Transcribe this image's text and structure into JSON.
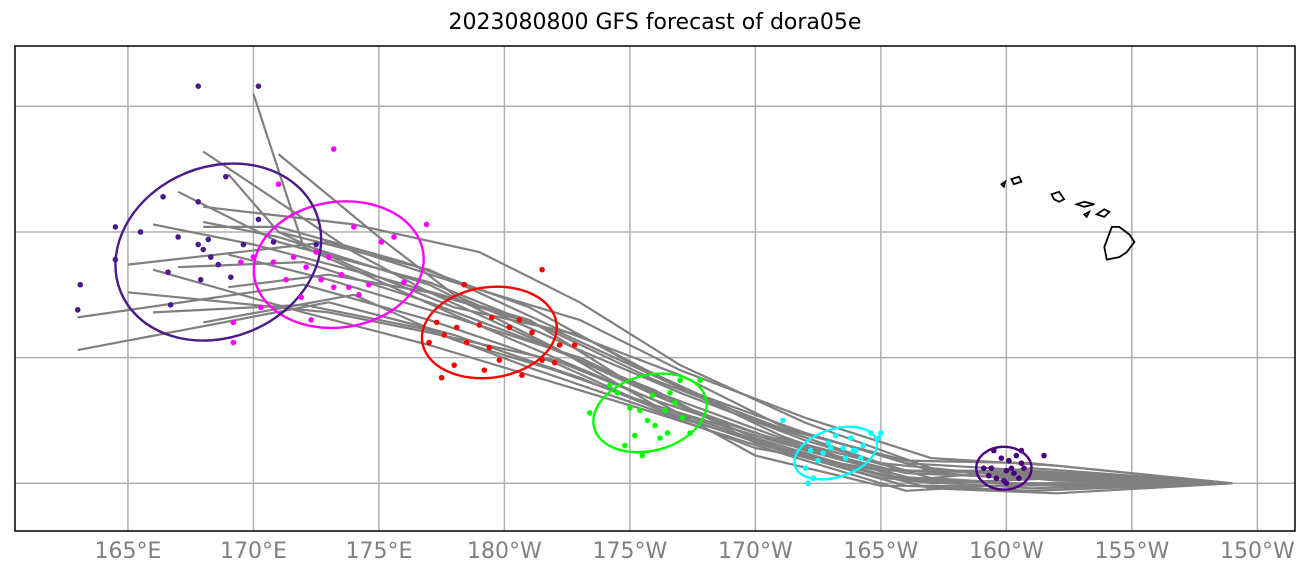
{
  "title": "2023080800 GFS forecast of dora05e",
  "lon_ticks": [
    {
      "lon": 165,
      "label": "165°E"
    },
    {
      "lon": 170,
      "label": "170°E"
    },
    {
      "lon": 175,
      "label": "175°E"
    },
    {
      "lon": 180,
      "label": "180°W"
    },
    {
      "lon": 185,
      "label": "175°W"
    },
    {
      "lon": 190,
      "label": "170°W"
    },
    {
      "lon": 195,
      "label": "165°W"
    },
    {
      "lon": 200,
      "label": "160°W"
    },
    {
      "lon": 205,
      "label": "155°W"
    },
    {
      "lon": 210,
      "label": "150°W"
    }
  ],
  "lat_gridlines": [
    10,
    15,
    20,
    25
  ],
  "extent": {
    "lon_min": 160.5,
    "lon_max": 211.5,
    "lat_min": 8.1,
    "lat_max": 27.4
  },
  "colors": {
    "track": "#808080",
    "grid": "#b0b0b0",
    "coast": "#000000",
    "day1": "#4b0082",
    "day2": "#00ffff",
    "day3": "#00ff00",
    "day4": "#ff0000",
    "day5": "#ff00ff",
    "day6": "#4b1a8a"
  },
  "start": {
    "lon": 209.0,
    "lat": 10.0
  },
  "tracks": [
    [
      [
        209,
        10.0
      ],
      [
        200,
        10.0
      ],
      [
        195,
        10.3
      ],
      [
        190,
        11.8
      ],
      [
        186,
        13.5
      ],
      [
        181,
        15.8
      ],
      [
        177,
        17.6
      ],
      [
        174,
        19.2
      ],
      [
        168,
        23.2
      ]
    ],
    [
      [
        209,
        10.0
      ],
      [
        200,
        10.2
      ],
      [
        195,
        10.6
      ],
      [
        190,
        12.0
      ],
      [
        186,
        13.3
      ],
      [
        182,
        15.0
      ],
      [
        178,
        16.7
      ],
      [
        172,
        19.4
      ],
      [
        170,
        25.5
      ]
    ],
    [
      [
        209,
        10.0
      ],
      [
        201,
        10.4
      ],
      [
        196,
        10.5
      ],
      [
        191,
        11.8
      ],
      [
        185,
        14.0
      ],
      [
        181,
        16.5
      ],
      [
        175,
        18.2
      ],
      [
        170,
        19.5
      ],
      [
        166,
        20.3
      ]
    ],
    [
      [
        209,
        10.0
      ],
      [
        201,
        9.7
      ],
      [
        196,
        9.9
      ],
      [
        191,
        11.3
      ],
      [
        186,
        13.0
      ],
      [
        182,
        14.8
      ],
      [
        177,
        16.5
      ],
      [
        172,
        17.9
      ],
      [
        163,
        16.6
      ]
    ],
    [
      [
        209,
        10.0
      ],
      [
        202,
        9.6
      ],
      [
        197,
        9.8
      ],
      [
        192,
        11.1
      ],
      [
        187,
        12.6
      ],
      [
        183,
        14.2
      ],
      [
        178,
        15.9
      ],
      [
        173,
        17.2
      ],
      [
        163,
        15.3
      ]
    ],
    [
      [
        209,
        10.0
      ],
      [
        202,
        10.7
      ],
      [
        197,
        11.0
      ],
      [
        192,
        12.6
      ],
      [
        187,
        14.5
      ],
      [
        183,
        16.5
      ],
      [
        178,
        18.0
      ],
      [
        173,
        19.6
      ],
      [
        165,
        18.7
      ]
    ],
    [
      [
        209,
        10.0
      ],
      [
        201,
        10.2
      ],
      [
        196,
        10.4
      ],
      [
        191,
        11.6
      ],
      [
        186,
        13.1
      ],
      [
        182,
        15.4
      ],
      [
        177,
        17.9
      ],
      [
        171,
        19.8
      ],
      [
        168,
        20.4
      ]
    ],
    [
      [
        209,
        10.0
      ],
      [
        200,
        10.5
      ],
      [
        195,
        10.5
      ],
      [
        190,
        11.4
      ],
      [
        186,
        12.9
      ],
      [
        181,
        14.6
      ],
      [
        177,
        16.1
      ],
      [
        172,
        17.1
      ],
      [
        166,
        16.8
      ]
    ],
    [
      [
        209,
        10.0
      ],
      [
        202,
        9.9
      ],
      [
        197,
        10.2
      ],
      [
        192,
        11.7
      ],
      [
        187,
        13.6
      ],
      [
        183,
        15.3
      ],
      [
        178,
        17.5
      ],
      [
        175,
        19.8
      ],
      [
        171,
        23.1
      ]
    ],
    [
      [
        209,
        10.0
      ],
      [
        201,
        10.8
      ],
      [
        196,
        10.9
      ],
      [
        191,
        12.2
      ],
      [
        186,
        14.1
      ],
      [
        182,
        16.0
      ],
      [
        177,
        18.0
      ],
      [
        171,
        19.6
      ],
      [
        167,
        21.6
      ]
    ],
    [
      [
        209,
        10.0
      ],
      [
        202,
        10.2
      ],
      [
        197,
        10.0
      ],
      [
        192,
        11.3
      ],
      [
        187,
        13.1
      ],
      [
        183,
        15.0
      ],
      [
        178,
        16.6
      ],
      [
        173,
        18.1
      ],
      [
        169,
        19.1
      ]
    ],
    [
      [
        209,
        10.0
      ],
      [
        200,
        9.9
      ],
      [
        195,
        9.9
      ],
      [
        190,
        11.1
      ],
      [
        186,
        13.3
      ],
      [
        182,
        14.9
      ],
      [
        177,
        16.0
      ],
      [
        173,
        16.8
      ],
      [
        165,
        17.6
      ]
    ],
    [
      [
        209,
        10.0
      ],
      [
        201,
        10.5
      ],
      [
        196,
        10.8
      ],
      [
        191,
        12.3
      ],
      [
        187,
        14.3
      ],
      [
        182,
        16.2
      ],
      [
        177,
        18.5
      ],
      [
        171,
        20.0
      ],
      [
        169,
        22.3
      ]
    ],
    [
      [
        209,
        10.0
      ],
      [
        202,
        10.3
      ],
      [
        197,
        10.5
      ],
      [
        192,
        12.0
      ],
      [
        187,
        13.8
      ],
      [
        183,
        15.9
      ],
      [
        178,
        17.0
      ],
      [
        174,
        18.6
      ],
      [
        171,
        20.0
      ]
    ],
    [
      [
        209,
        10.0
      ],
      [
        200,
        10.0
      ],
      [
        195,
        10.2
      ],
      [
        190,
        11.6
      ],
      [
        186,
        13.7
      ],
      [
        181,
        15.7
      ],
      [
        177,
        17.2
      ],
      [
        172,
        18.8
      ],
      [
        167,
        18.6
      ]
    ],
    [
      [
        209,
        10.0
      ],
      [
        201,
        10.6
      ],
      [
        196,
        10.1
      ],
      [
        191,
        11.4
      ],
      [
        186,
        13.1
      ],
      [
        182,
        14.5
      ],
      [
        178,
        15.7
      ],
      [
        174,
        17.5
      ],
      [
        168,
        16.4
      ]
    ],
    [
      [
        209,
        10.0
      ],
      [
        201,
        9.8
      ],
      [
        196,
        10.1
      ],
      [
        191,
        11.9
      ],
      [
        187,
        13.8
      ],
      [
        182,
        16.1
      ],
      [
        177,
        17.6
      ],
      [
        173,
        18.3
      ],
      [
        169,
        17.8
      ]
    ],
    [
      [
        209,
        10.0
      ],
      [
        202,
        10.1
      ],
      [
        197,
        10.6
      ],
      [
        192,
        12.4
      ],
      [
        187,
        14.7
      ],
      [
        183,
        17.2
      ],
      [
        179,
        19.2
      ],
      [
        174,
        20.3
      ],
      [
        168,
        21.0
      ]
    ],
    [
      [
        209,
        10.0
      ],
      [
        200,
        10.3
      ],
      [
        195,
        10.8
      ],
      [
        190,
        12.5
      ],
      [
        185,
        14.8
      ],
      [
        181,
        17.0
      ],
      [
        176,
        18.8
      ],
      [
        171,
        20.2
      ],
      [
        168,
        20.2
      ]
    ],
    [
      [
        209,
        10.0
      ],
      [
        201,
        10.0
      ],
      [
        196,
        9.7
      ],
      [
        191,
        11.2
      ],
      [
        186,
        12.8
      ],
      [
        181,
        14.3
      ],
      [
        177,
        15.5
      ],
      [
        172,
        16.8
      ],
      [
        166,
        18.5
      ]
    ]
  ],
  "ellipses": [
    {
      "color": "#4b0082",
      "cx": 199.9,
      "cy": 10.6,
      "rx": 1.1,
      "ry": 0.85,
      "rot": 0
    },
    {
      "color": "#00ffff",
      "cx": 193.2,
      "cy": 11.2,
      "rx": 1.7,
      "ry": 0.95,
      "rot": -18
    },
    {
      "color": "#00ff00",
      "cx": 185.8,
      "cy": 12.8,
      "rx": 2.3,
      "ry": 1.5,
      "rot": -15
    },
    {
      "color": "#ff0000",
      "cx": 179.4,
      "cy": 16.0,
      "rx": 2.7,
      "ry": 1.8,
      "rot": -8
    },
    {
      "color": "#ff00ff",
      "cx": 173.4,
      "cy": 18.7,
      "rx": 3.4,
      "ry": 2.5,
      "rot": -8
    },
    {
      "color": "#4b1a8a",
      "cx": 168.6,
      "cy": 19.2,
      "rx": 4.2,
      "ry": 3.4,
      "rot": -22
    }
  ],
  "points": [
    {
      "color": "#4b0082",
      "pts": [
        [
          200,
          10.0
        ],
        [
          200.3,
          10.4
        ],
        [
          200.6,
          10.8
        ],
        [
          200.1,
          10.9
        ],
        [
          199.4,
          10.6
        ],
        [
          199.8,
          11.0
        ],
        [
          200.5,
          10.2
        ],
        [
          199.6,
          10.2
        ],
        [
          200.4,
          11.1
        ],
        [
          200.7,
          10.6
        ],
        [
          199.5,
          11.3
        ],
        [
          201.5,
          11.1
        ],
        [
          199.9,
          10.1
        ],
        [
          199.3,
          10.3
        ],
        [
          200.2,
          10.6
        ],
        [
          199.1,
          10.6
        ],
        [
          200.6,
          11.3
        ],
        [
          200.0,
          10.5
        ]
      ]
    },
    {
      "color": "#00ffff",
      "pts": [
        [
          192.0,
          10.6
        ],
        [
          192.2,
          11.3
        ],
        [
          192.5,
          10.9
        ],
        [
          192.9,
          11.6
        ],
        [
          193.2,
          11.9
        ],
        [
          193.5,
          11.4
        ],
        [
          193.8,
          11.8
        ],
        [
          194.0,
          11.3
        ],
        [
          194.3,
          11.5
        ],
        [
          194.6,
          12.0
        ],
        [
          194.9,
          11.8
        ],
        [
          192.7,
          11.2
        ],
        [
          193.0,
          11.4
        ],
        [
          193.6,
          11.0
        ],
        [
          192.3,
          10.2
        ],
        [
          192.1,
          10.0
        ],
        [
          193.9,
          11.3
        ],
        [
          195.0,
          12.0
        ],
        [
          191.1,
          12.5
        ],
        [
          194.2,
          11.0
        ]
      ]
    },
    {
      "color": "#00ff00",
      "pts": [
        [
          184.2,
          13.9
        ],
        [
          184.5,
          13.6
        ],
        [
          185.0,
          13.0
        ],
        [
          185.4,
          12.9
        ],
        [
          185.7,
          12.5
        ],
        [
          186.0,
          12.3
        ],
        [
          186.4,
          12.9
        ],
        [
          186.8,
          13.2
        ],
        [
          187.1,
          12.6
        ],
        [
          187.4,
          12.0
        ],
        [
          185.9,
          13.5
        ],
        [
          186.2,
          11.8
        ],
        [
          184.8,
          11.5
        ],
        [
          185.2,
          11.9
        ],
        [
          186.6,
          13.6
        ],
        [
          185.5,
          11.1
        ],
        [
          187.0,
          14.1
        ],
        [
          183.4,
          12.8
        ],
        [
          186.5,
          12.0
        ],
        [
          187.8,
          14.1
        ]
      ]
    },
    {
      "color": "#ff0000",
      "pts": [
        [
          177.0,
          15.6
        ],
        [
          177.6,
          15.9
        ],
        [
          178.1,
          16.2
        ],
        [
          178.5,
          15.6
        ],
        [
          179.0,
          16.3
        ],
        [
          179.4,
          15.4
        ],
        [
          179.8,
          14.9
        ],
        [
          180.2,
          16.2
        ],
        [
          180.6,
          16.5
        ],
        [
          181.1,
          16.0
        ],
        [
          181.5,
          14.9
        ],
        [
          182.0,
          14.8
        ],
        [
          179.2,
          14.5
        ],
        [
          178.0,
          14.7
        ],
        [
          177.5,
          14.2
        ],
        [
          180.7,
          14.3
        ],
        [
          182.2,
          15.5
        ],
        [
          179.5,
          16.6
        ],
        [
          181.5,
          18.5
        ],
        [
          182.8,
          15.5
        ],
        [
          178.4,
          17.9
        ],
        [
          177.3,
          16.4
        ]
      ]
    },
    {
      "color": "#ff00ff",
      "pts": [
        [
          169.5,
          18.8
        ],
        [
          170.0,
          19.0
        ],
        [
          170.8,
          18.8
        ],
        [
          171.3,
          18.1
        ],
        [
          171.6,
          19.0
        ],
        [
          172.1,
          18.6
        ],
        [
          172.5,
          19.2
        ],
        [
          173.0,
          19.0
        ],
        [
          173.5,
          18.3
        ],
        [
          173.8,
          17.8
        ],
        [
          174.2,
          17.5
        ],
        [
          174.6,
          17.9
        ],
        [
          175.1,
          19.6
        ],
        [
          175.6,
          19.8
        ],
        [
          176.0,
          18.0
        ],
        [
          172.7,
          18.1
        ],
        [
          173.2,
          17.8
        ],
        [
          171.9,
          17.4
        ],
        [
          170.3,
          17.0
        ],
        [
          172.3,
          16.5
        ],
        [
          169.2,
          16.4
        ],
        [
          169.2,
          15.6
        ],
        [
          174.0,
          20.2
        ],
        [
          176.9,
          20.3
        ],
        [
          173.2,
          23.3
        ],
        [
          171.0,
          21.9
        ]
      ]
    },
    {
      "color": "#4b1a8a",
      "pts": [
        [
          163.0,
          16.9
        ],
        [
          163.1,
          17.9
        ],
        [
          164.5,
          18.9
        ],
        [
          164.5,
          20.2
        ],
        [
          165.5,
          20.0
        ],
        [
          166.4,
          21.4
        ],
        [
          167.0,
          19.8
        ],
        [
          167.8,
          19.5
        ],
        [
          168.0,
          19.3
        ],
        [
          168.3,
          19.0
        ],
        [
          168.6,
          18.7
        ],
        [
          169.1,
          18.2
        ],
        [
          169.6,
          19.5
        ],
        [
          170.2,
          20.5
        ],
        [
          168.9,
          22.2
        ],
        [
          167.8,
          21.2
        ],
        [
          166.6,
          18.4
        ],
        [
          166.7,
          17.1
        ],
        [
          167.9,
          18.1
        ],
        [
          170.8,
          19.6
        ],
        [
          168.2,
          19.7
        ],
        [
          167.8,
          25.8
        ],
        [
          170.2,
          25.8
        ],
        [
          172.5,
          19.5
        ]
      ]
    }
  ],
  "islands": [
    [
      [
        203.9,
        19.4
      ],
      [
        204.2,
        20.2
      ],
      [
        204.5,
        20.2
      ],
      [
        204.9,
        19.9
      ],
      [
        205.1,
        19.6
      ],
      [
        204.8,
        19.2
      ],
      [
        204.5,
        19.0
      ],
      [
        204.0,
        18.9
      ],
      [
        203.9,
        19.4
      ]
    ],
    [
      [
        203.6,
        20.7
      ],
      [
        203.9,
        20.9
      ],
      [
        204.1,
        20.8
      ],
      [
        203.9,
        20.6
      ],
      [
        203.6,
        20.7
      ]
    ],
    [
      [
        202.8,
        21.1
      ],
      [
        203.1,
        21.2
      ],
      [
        203.5,
        21.1
      ],
      [
        203.1,
        21.0
      ],
      [
        202.8,
        21.1
      ]
    ],
    [
      [
        203.1,
        20.7
      ],
      [
        203.3,
        20.8
      ],
      [
        203.2,
        20.6
      ],
      [
        203.1,
        20.7
      ]
    ],
    [
      [
        201.8,
        21.5
      ],
      [
        202.1,
        21.6
      ],
      [
        202.3,
        21.3
      ],
      [
        202.1,
        21.2
      ],
      [
        201.9,
        21.3
      ],
      [
        201.8,
        21.5
      ]
    ],
    [
      [
        200.2,
        22.1
      ],
      [
        200.5,
        22.2
      ],
      [
        200.6,
        22.0
      ],
      [
        200.3,
        21.9
      ],
      [
        200.2,
        22.1
      ]
    ],
    [
      [
        199.8,
        21.9
      ],
      [
        199.95,
        22.0
      ],
      [
        199.9,
        21.8
      ],
      [
        199.8,
        21.9
      ]
    ]
  ]
}
